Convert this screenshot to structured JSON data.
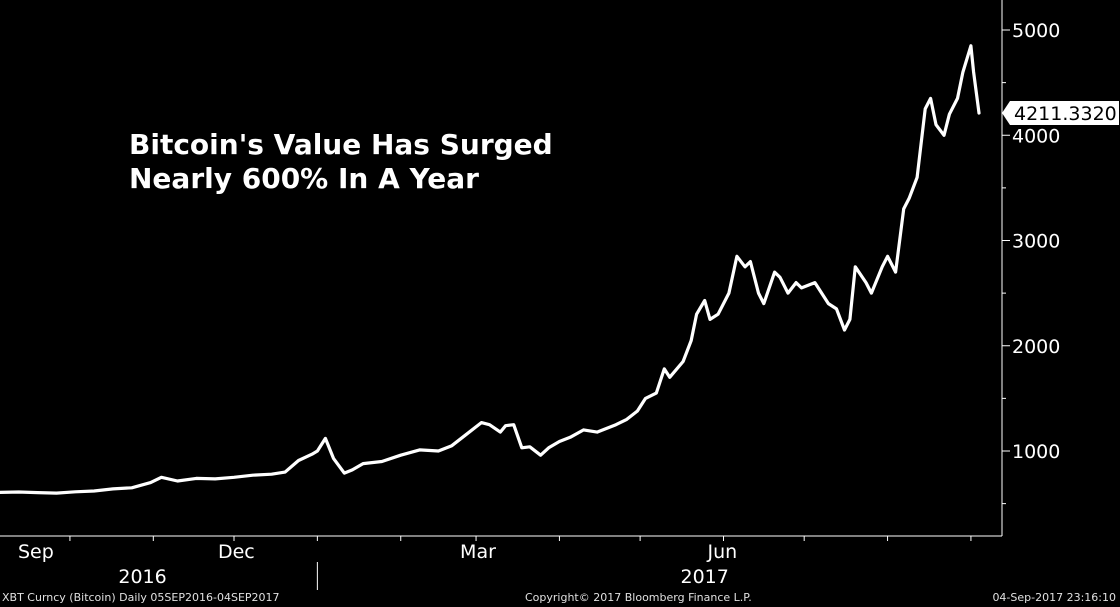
{
  "chart_data": {
    "type": "line",
    "title": "Bitcoin's Value Has Surged",
    "subtitle": "Nearly 600% In A Year",
    "last_value_label": "4211.3320",
    "y_ticks": [
      1000,
      2000,
      3000,
      4000,
      5000
    ],
    "y_tick_labels": [
      "1000",
      "2000",
      "3000",
      "4000",
      "5000"
    ],
    "ylim": [
      400,
      5200
    ],
    "x_tick_labels": [
      {
        "date": "2016-09-05",
        "label": "Sep"
      },
      {
        "date": "2016-12-01",
        "label": "Dec"
      },
      {
        "date": "2017-03-01",
        "label": "Mar"
      },
      {
        "date": "2017-06-01",
        "label": "Jun"
      }
    ],
    "year_labels": [
      {
        "date": "2016-10-28",
        "label": "2016"
      },
      {
        "date": "2017-05-25",
        "label": "2017"
      }
    ],
    "grid": false,
    "series": [
      {
        "color": "#ffffff",
        "points": [
          [
            "2016-09-05",
            607
          ],
          [
            "2016-09-12",
            610
          ],
          [
            "2016-09-19",
            605
          ],
          [
            "2016-09-26",
            600
          ],
          [
            "2016-10-03",
            612
          ],
          [
            "2016-10-10",
            620
          ],
          [
            "2016-10-17",
            640
          ],
          [
            "2016-10-24",
            650
          ],
          [
            "2016-10-31",
            700
          ],
          [
            "2016-11-04",
            750
          ],
          [
            "2016-11-10",
            715
          ],
          [
            "2016-11-17",
            740
          ],
          [
            "2016-11-24",
            735
          ],
          [
            "2016-12-01",
            750
          ],
          [
            "2016-12-08",
            770
          ],
          [
            "2016-12-15",
            780
          ],
          [
            "2016-12-20",
            800
          ],
          [
            "2016-12-25",
            910
          ],
          [
            "2016-12-30",
            970
          ],
          [
            "2017-01-01",
            1000
          ],
          [
            "2017-01-04",
            1120
          ],
          [
            "2017-01-07",
            930
          ],
          [
            "2017-01-11",
            790
          ],
          [
            "2017-01-14",
            820
          ],
          [
            "2017-01-18",
            880
          ],
          [
            "2017-01-25",
            900
          ],
          [
            "2017-02-01",
            960
          ],
          [
            "2017-02-08",
            1010
          ],
          [
            "2017-02-15",
            1000
          ],
          [
            "2017-02-20",
            1050
          ],
          [
            "2017-02-25",
            1150
          ],
          [
            "2017-03-03",
            1270
          ],
          [
            "2017-03-06",
            1250
          ],
          [
            "2017-03-10",
            1180
          ],
          [
            "2017-03-12",
            1240
          ],
          [
            "2017-03-15",
            1250
          ],
          [
            "2017-03-18",
            1030
          ],
          [
            "2017-03-21",
            1040
          ],
          [
            "2017-03-25",
            960
          ],
          [
            "2017-03-28",
            1030
          ],
          [
            "2017-04-01",
            1090
          ],
          [
            "2017-04-05",
            1130
          ],
          [
            "2017-04-10",
            1200
          ],
          [
            "2017-04-15",
            1180
          ],
          [
            "2017-04-22",
            1250
          ],
          [
            "2017-04-26",
            1300
          ],
          [
            "2017-04-30",
            1380
          ],
          [
            "2017-05-03",
            1500
          ],
          [
            "2017-05-07",
            1550
          ],
          [
            "2017-05-10",
            1780
          ],
          [
            "2017-05-12",
            1700
          ],
          [
            "2017-05-17",
            1850
          ],
          [
            "2017-05-20",
            2050
          ],
          [
            "2017-05-22",
            2300
          ],
          [
            "2017-05-25",
            2430
          ],
          [
            "2017-05-27",
            2250
          ],
          [
            "2017-05-30",
            2300
          ],
          [
            "2017-06-03",
            2500
          ],
          [
            "2017-06-06",
            2850
          ],
          [
            "2017-06-09",
            2750
          ],
          [
            "2017-06-11",
            2800
          ],
          [
            "2017-06-14",
            2500
          ],
          [
            "2017-06-16",
            2400
          ],
          [
            "2017-06-20",
            2700
          ],
          [
            "2017-06-22",
            2650
          ],
          [
            "2017-06-25",
            2500
          ],
          [
            "2017-06-28",
            2600
          ],
          [
            "2017-06-30",
            2550
          ],
          [
            "2017-07-05",
            2600
          ],
          [
            "2017-07-10",
            2400
          ],
          [
            "2017-07-13",
            2350
          ],
          [
            "2017-07-16",
            2150
          ],
          [
            "2017-07-18",
            2250
          ],
          [
            "2017-07-20",
            2750
          ],
          [
            "2017-07-24",
            2600
          ],
          [
            "2017-07-26",
            2500
          ],
          [
            "2017-07-30",
            2750
          ],
          [
            "2017-08-01",
            2850
          ],
          [
            "2017-08-04",
            2700
          ],
          [
            "2017-08-07",
            3300
          ],
          [
            "2017-08-09",
            3400
          ],
          [
            "2017-08-12",
            3600
          ],
          [
            "2017-08-15",
            4250
          ],
          [
            "2017-08-17",
            4350
          ],
          [
            "2017-08-19",
            4100
          ],
          [
            "2017-08-22",
            4000
          ],
          [
            "2017-08-24",
            4200
          ],
          [
            "2017-08-27",
            4350
          ],
          [
            "2017-08-29",
            4600
          ],
          [
            "2017-09-01",
            4850
          ],
          [
            "2017-09-02",
            4600
          ],
          [
            "2017-09-04",
            4211
          ]
        ]
      }
    ]
  },
  "footer": {
    "left": "XBT Curncy (Bitcoin)  Daily 05SEP2016-04SEP2017",
    "center": "Copyright© 2017 Bloomberg Finance L.P.",
    "right": "04-Sep-2017 23:16:10"
  }
}
